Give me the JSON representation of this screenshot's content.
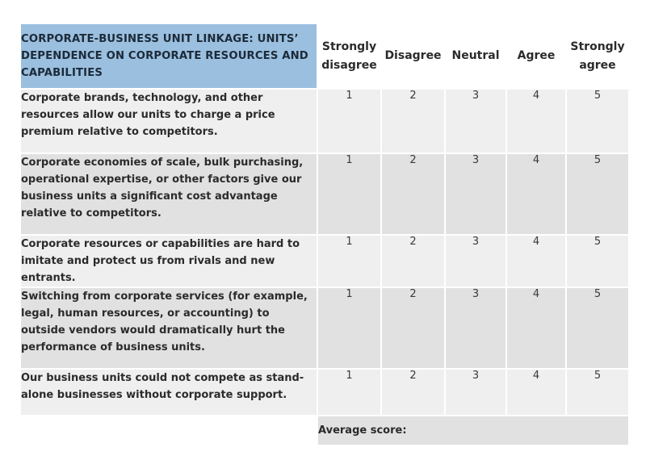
{
  "header": {
    "title": "CORPORATE-BUSINESS UNIT LINKAGE: UNITS’ DEPENDENCE ON CORPORATE RESOURCES AND CAPABILITIES",
    "columns": [
      {
        "line1": "Strongly",
        "line2": "disagree"
      },
      {
        "line1": "Disagree",
        "line2": ""
      },
      {
        "line1": "Neutral",
        "line2": ""
      },
      {
        "line1": "Agree",
        "line2": ""
      },
      {
        "line1": "Strongly",
        "line2": "agree"
      }
    ]
  },
  "rows": [
    {
      "statement": "Corporate brands, technology, and other resources allow our units to charge a price premium relative to competitors.",
      "scores": [
        "1",
        "2",
        "3",
        "4",
        "5"
      ]
    },
    {
      "statement": "Corporate economies of scale, bulk purchasing, operational expertise, or other factors give our business units a significant cost advantage relative to competitors.",
      "scores": [
        "1",
        "2",
        "3",
        "4",
        "5"
      ]
    },
    {
      "statement": "Corporate resources or capabilities are hard to imitate and protect us from rivals and new entrants.",
      "scores": [
        "1",
        "2",
        "3",
        "4",
        "5"
      ]
    },
    {
      "statement": "Switching from corporate services (for example, legal, human resources, or accounting) to outside vendors would dramatically hurt the performance of business units.",
      "scores": [
        "1",
        "2",
        "3",
        "4",
        "5"
      ]
    },
    {
      "statement": "Our business units could not compete as stand-alone businesses without corporate support.",
      "scores": [
        "1",
        "2",
        "3",
        "4",
        "5"
      ]
    }
  ],
  "footer": {
    "average_label": "Average score:"
  },
  "colors": {
    "header_fill": "#9bbfdf",
    "row_light": "#efefef",
    "row_dark": "#e1e1e1"
  }
}
